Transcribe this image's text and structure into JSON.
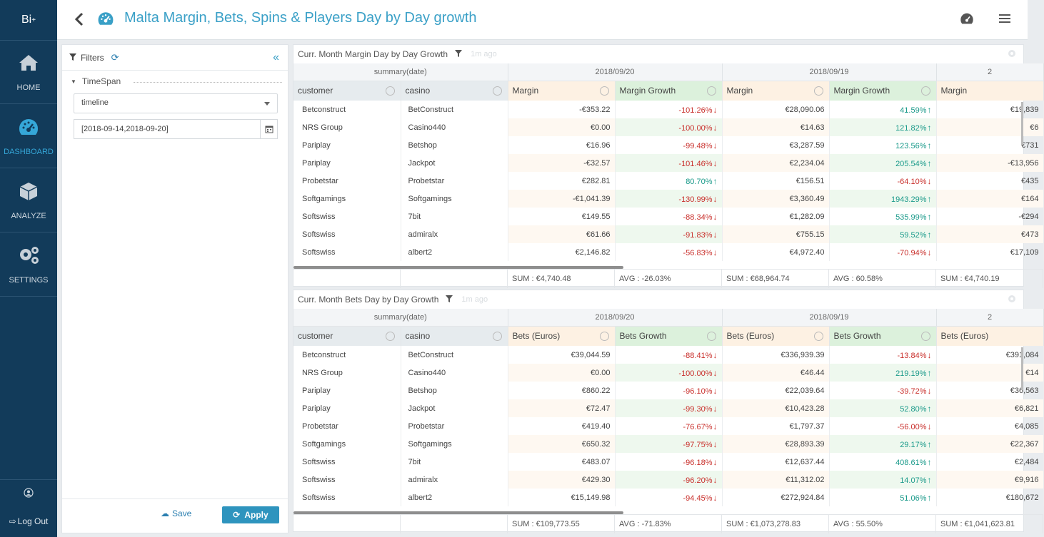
{
  "sidebar": {
    "logo": "Bi",
    "logo_sup": "+",
    "items": [
      {
        "label": "HOME"
      },
      {
        "label": "DASHBOARD"
      },
      {
        "label": "ANALYZE"
      },
      {
        "label": "SETTINGS"
      }
    ],
    "logout": "Log Out"
  },
  "header": {
    "title": "Malta Margin, Bets, Spins & Players Day by Day growth"
  },
  "filters": {
    "title": "Filters",
    "timespan_label": "TimeSpan",
    "select_value": "timeline",
    "date_value": "[2018-09-14,2018-09-20]",
    "save_label": "Save",
    "apply_label": "Apply"
  },
  "panels": [
    {
      "title": "Curr. Month Margin Day by Day Growth",
      "ago": "1m ago",
      "group_label": "summary(date)",
      "dates": [
        "2018/09/20",
        "2018/09/19",
        "2"
      ],
      "col_customer": "customer",
      "col_casino": "casino",
      "col_value": "Margin",
      "col_growth": "Margin Growth",
      "rows": [
        {
          "customer": "Betconstruct",
          "casino": "BetConstruct",
          "v1": "-€353.22",
          "g1": "-101.26%",
          "g1s": "neg",
          "v2": "€28,090.06",
          "g2": "41.59%",
          "g2s": "pos",
          "v3": "€19,839"
        },
        {
          "customer": "NRS Group",
          "casino": "Casino440",
          "v1": "€0.00",
          "g1": "-100.00%",
          "g1s": "neg",
          "v2": "€14.63",
          "g2": "121.82%",
          "g2s": "pos",
          "v3": "€6"
        },
        {
          "customer": "Pariplay",
          "casino": "Betshop",
          "v1": "€16.96",
          "g1": "-99.48%",
          "g1s": "neg",
          "v2": "€3,287.59",
          "g2": "123.56%",
          "g2s": "pos",
          "v3": "€731"
        },
        {
          "customer": "Pariplay",
          "casino": "Jackpot",
          "v1": "-€32.57",
          "g1": "-101.46%",
          "g1s": "neg",
          "v2": "€2,234.04",
          "g2": "205.54%",
          "g2s": "pos",
          "v3": "-€13,956"
        },
        {
          "customer": "Probetstar",
          "casino": "Probetstar",
          "v1": "€282.81",
          "g1": "80.70%",
          "g1s": "pos",
          "v2": "€156.51",
          "g2": "-64.10%",
          "g2s": "neg",
          "v3": "€435"
        },
        {
          "customer": "Softgamings",
          "casino": "Softgamings",
          "v1": "-€1,041.39",
          "g1": "-130.99%",
          "g1s": "neg",
          "v2": "€3,360.49",
          "g2": "1943.29%",
          "g2s": "pos",
          "v3": "€164"
        },
        {
          "customer": "Softswiss",
          "casino": "7bit",
          "v1": "€149.55",
          "g1": "-88.34%",
          "g1s": "neg",
          "v2": "€1,282.09",
          "g2": "535.99%",
          "g2s": "pos",
          "v3": "-€294"
        },
        {
          "customer": "Softswiss",
          "casino": "admiralx",
          "v1": "€61.66",
          "g1": "-91.83%",
          "g1s": "neg",
          "v2": "€755.15",
          "g2": "59.52%",
          "g2s": "pos",
          "v3": "€473"
        },
        {
          "customer": "Softswiss",
          "casino": "albert2",
          "v1": "€2,146.82",
          "g1": "-56.83%",
          "g1s": "neg",
          "v2": "€4,972.40",
          "g2": "-70.94%",
          "g2s": "neg",
          "v3": "€17,109"
        }
      ],
      "summary": [
        "SUM : €4,740.48",
        "AVG : -26.03%",
        "SUM : €68,964.74",
        "AVG : 60.58%",
        "SUM : €4,740.19"
      ]
    },
    {
      "title": "Curr. Month Bets Day by Day Growth",
      "ago": "1m ago",
      "group_label": "summary(date)",
      "dates": [
        "2018/09/20",
        "2018/09/19",
        "2"
      ],
      "col_customer": "customer",
      "col_casino": "casino",
      "col_value": "Bets (Euros)",
      "col_growth": "Bets Growth",
      "rows": [
        {
          "customer": "Betconstruct",
          "casino": "BetConstruct",
          "v1": "€39,044.59",
          "g1": "-88.41%",
          "g1s": "neg",
          "v2": "€336,939.39",
          "g2": "-13.84%",
          "g2s": "neg",
          "v3": "€391,084"
        },
        {
          "customer": "NRS Group",
          "casino": "Casino440",
          "v1": "€0.00",
          "g1": "-100.00%",
          "g1s": "neg",
          "v2": "€46.44",
          "g2": "219.19%",
          "g2s": "pos",
          "v3": "€14"
        },
        {
          "customer": "Pariplay",
          "casino": "Betshop",
          "v1": "€860.22",
          "g1": "-96.10%",
          "g1s": "neg",
          "v2": "€22,039.64",
          "g2": "-39.72%",
          "g2s": "neg",
          "v3": "€36,563"
        },
        {
          "customer": "Pariplay",
          "casino": "Jackpot",
          "v1": "€72.47",
          "g1": "-99.30%",
          "g1s": "neg",
          "v2": "€10,423.28",
          "g2": "52.80%",
          "g2s": "pos",
          "v3": "€6,821"
        },
        {
          "customer": "Probetstar",
          "casino": "Probetstar",
          "v1": "€419.40",
          "g1": "-76.67%",
          "g1s": "neg",
          "v2": "€1,797.37",
          "g2": "-56.00%",
          "g2s": "neg",
          "v3": "€4,085"
        },
        {
          "customer": "Softgamings",
          "casino": "Softgamings",
          "v1": "€650.32",
          "g1": "-97.75%",
          "g1s": "neg",
          "v2": "€28,893.39",
          "g2": "29.17%",
          "g2s": "pos",
          "v3": "€22,367"
        },
        {
          "customer": "Softswiss",
          "casino": "7bit",
          "v1": "€483.07",
          "g1": "-96.18%",
          "g1s": "neg",
          "v2": "€12,637.44",
          "g2": "408.61%",
          "g2s": "pos",
          "v3": "€2,484"
        },
        {
          "customer": "Softswiss",
          "casino": "admiralx",
          "v1": "€429.30",
          "g1": "-96.20%",
          "g1s": "neg",
          "v2": "€11,312.02",
          "g2": "14.07%",
          "g2s": "pos",
          "v3": "€9,916"
        },
        {
          "customer": "Softswiss",
          "casino": "albert2",
          "v1": "€15,149.98",
          "g1": "-94.45%",
          "g1s": "neg",
          "v2": "€272,924.84",
          "g2": "51.06%",
          "g2s": "pos",
          "v3": "€180,672"
        }
      ],
      "summary": [
        "SUM : €109,773.55",
        "AVG : -71.83%",
        "SUM : €1,073,278.83",
        "AVG : 55.50%",
        "SUM : €1,041,623.81"
      ]
    }
  ]
}
